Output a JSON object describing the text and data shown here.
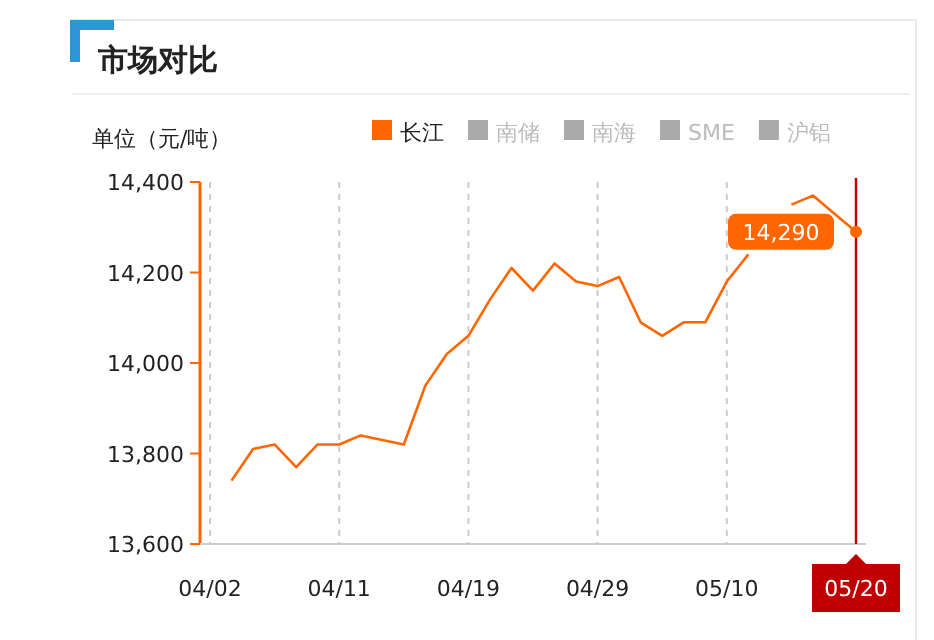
{
  "chart_data": {
    "type": "line",
    "title": "市场对比",
    "ylabel": "单位（元/吨）",
    "categories": [
      "04/02",
      null,
      null,
      null,
      null,
      null,
      "04/11",
      null,
      null,
      null,
      null,
      null,
      "04/19",
      null,
      null,
      null,
      null,
      null,
      "04/29",
      null,
      null,
      null,
      null,
      null,
      "05/10",
      null,
      null,
      null,
      null,
      null,
      "05/20"
    ],
    "series": [
      {
        "name": "长江",
        "color": "#ff6600",
        "values": [
          null,
          13740,
          13810,
          13820,
          13770,
          13820,
          13820,
          13840,
          13830,
          13820,
          13950,
          14020,
          14060,
          14140,
          14210,
          14160,
          14220,
          14180,
          14170,
          14190,
          14090,
          14060,
          14090,
          14090,
          14180,
          14240,
          null,
          14350,
          14370,
          14330,
          14290
        ]
      },
      {
        "name": "南储",
        "color": "#aaaaaa",
        "values": [
          null,
          null,
          null,
          null,
          null,
          null,
          null,
          null,
          null,
          null,
          null,
          null,
          null,
          null,
          null,
          null,
          null,
          null,
          null,
          null,
          null,
          null,
          null,
          null,
          null,
          null,
          null,
          null,
          null,
          null,
          null
        ]
      },
      {
        "name": "南海",
        "color": "#aaaaaa",
        "values": [
          null,
          null,
          null,
          null,
          null,
          null,
          null,
          null,
          null,
          null,
          null,
          null,
          null,
          null,
          null,
          null,
          null,
          null,
          null,
          null,
          null,
          null,
          null,
          null,
          null,
          null,
          null,
          null,
          null,
          null,
          null
        ]
      },
      {
        "name": "SME",
        "color": "#aaaaaa",
        "values": [
          null,
          null,
          null,
          null,
          null,
          null,
          null,
          null,
          null,
          null,
          null,
          null,
          null,
          null,
          null,
          null,
          null,
          null,
          null,
          null,
          null,
          null,
          null,
          null,
          null,
          null,
          null,
          null,
          null,
          null,
          null
        ]
      },
      {
        "name": "沪铝",
        "color": "#aaaaaa",
        "values": [
          null,
          null,
          null,
          null,
          null,
          null,
          null,
          null,
          null,
          null,
          null,
          null,
          null,
          null,
          null,
          null,
          null,
          null,
          null,
          null,
          null,
          null,
          null,
          null,
          null,
          null,
          null,
          null,
          null,
          null,
          null
        ]
      }
    ],
    "ylim": [
      13600,
      14400
    ],
    "yticks": [
      {
        "value": 13600,
        "label": "13,600"
      },
      {
        "value": 13800,
        "label": "13,800"
      },
      {
        "value": 14000,
        "label": "14,000"
      },
      {
        "value": 14200,
        "label": "14,200"
      },
      {
        "value": 14400,
        "label": "14,400"
      }
    ],
    "grid": "x",
    "legend": "top",
    "marker": "none",
    "ref_lines": [
      {
        "axis": "x",
        "value": "05/20",
        "color": "#c00000"
      }
    ],
    "annotations": [
      {
        "text": "14,290",
        "x": "05/20",
        "y": 14290
      }
    ]
  }
}
